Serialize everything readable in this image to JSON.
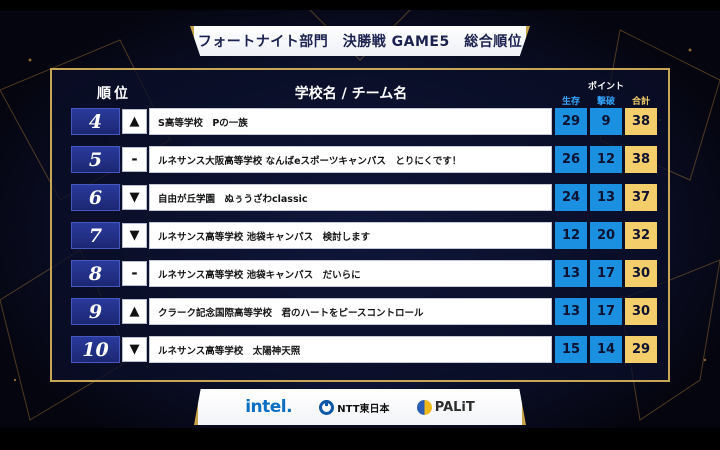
{
  "title": "フォートナイト部門　決勝戦 GAME5　総合順位",
  "header": {
    "rank": "順位",
    "school": "学校名 / チーム名",
    "points": "ポイント",
    "survival": "生存",
    "kills": "撃破",
    "total": "合計"
  },
  "rows": [
    {
      "rank": "4",
      "trend_icon": "up-triangle",
      "trend": "▲",
      "school": "S高等学校　Pの一族",
      "survival": "29",
      "kills": "9",
      "total": "38"
    },
    {
      "rank": "5",
      "trend_icon": "dash",
      "trend": "-",
      "school": "ルネサンス大阪高等学校 なんばeスポーツキャンパス　とりにくです！",
      "survival": "26",
      "kills": "12",
      "total": "38"
    },
    {
      "rank": "6",
      "trend_icon": "down-triangle",
      "trend": "▼",
      "school": "自由が丘学園　ぬぅうざわclassic",
      "survival": "24",
      "kills": "13",
      "total": "37"
    },
    {
      "rank": "7",
      "trend_icon": "down-triangle",
      "trend": "▼",
      "school": "ルネサンス高等学校 池袋キャンパス　検討します",
      "survival": "12",
      "kills": "20",
      "total": "32"
    },
    {
      "rank": "8",
      "trend_icon": "dash",
      "trend": "-",
      "school": "ルネサンス高等学校 池袋キャンパス　だいらに",
      "survival": "13",
      "kills": "17",
      "total": "30"
    },
    {
      "rank": "9",
      "trend_icon": "up-triangle",
      "trend": "▲",
      "school": "クラーク記念国際高等学校　君のハートをピースコントロール",
      "survival": "13",
      "kills": "17",
      "total": "30"
    },
    {
      "rank": "10",
      "trend_icon": "down-triangle",
      "trend": "▼",
      "school": "ルネサンス高等学校　太陽神天照",
      "survival": "15",
      "kills": "14",
      "total": "29"
    }
  ],
  "sponsors": {
    "intel": "intel.",
    "ntt": "NTT東日本",
    "palit": "PALiT"
  },
  "colors": {
    "rank_bg": "#1f2b7e",
    "survival_kills_bg": "#1b8fe0",
    "total_bg": "#f4ce6a",
    "gold_border": "#c7a755"
  }
}
